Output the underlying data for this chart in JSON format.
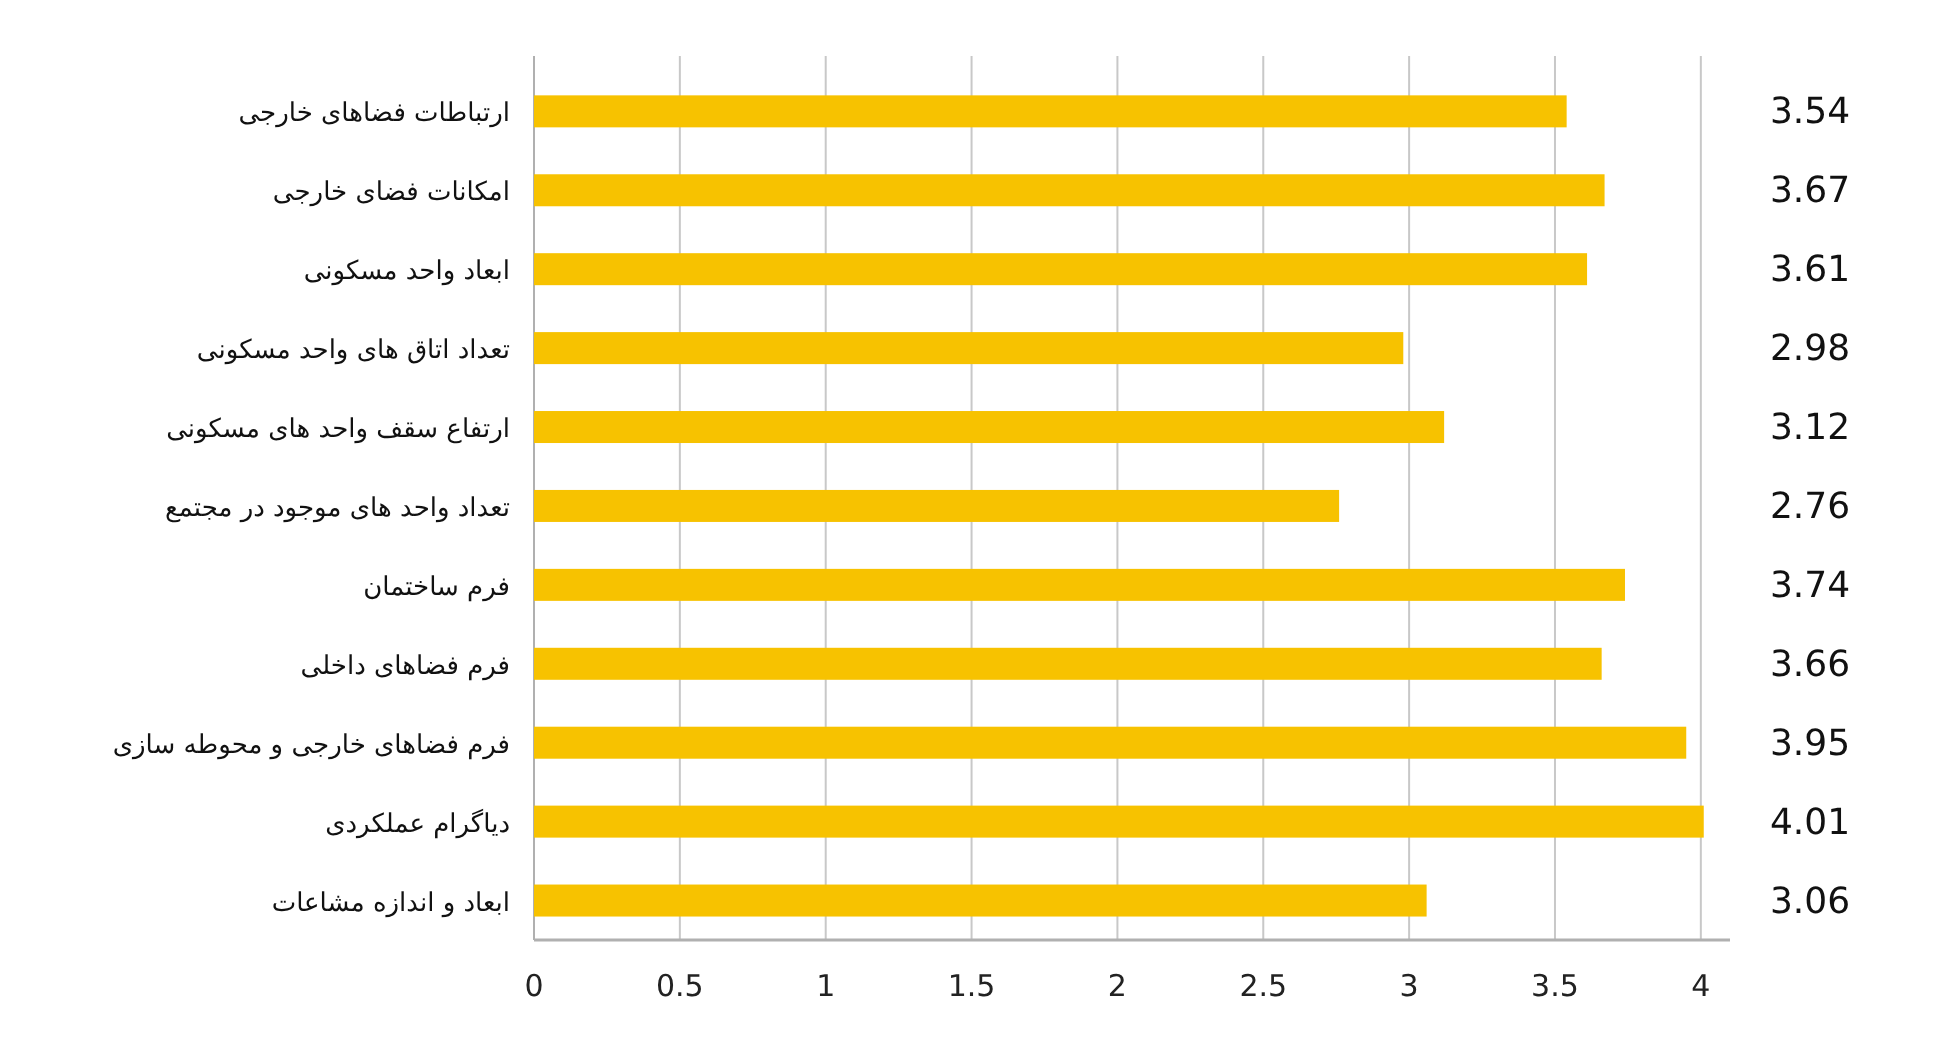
{
  "chart_data": {
    "type": "bar",
    "orientation": "horizontal",
    "categories": [
      "ارتباطات فضاهای خارجی",
      "امکانات فضای خارجی",
      "ابعاد واحد مسکونی",
      "تعداد اتاق های واحد مسکونی",
      "ارتفاع سقف واحد های مسکونی",
      "تعداد واحد های موجود در مجتمع",
      "فرم ساختمان",
      "فرم فضاهای داخلی",
      "فرم فضاهای خارجی و محوطه سازی",
      "دیاگرام عملکردی",
      "ابعاد و اندازه مشاعات"
    ],
    "values": [
      3.54,
      3.67,
      3.61,
      2.98,
      3.12,
      2.76,
      3.74,
      3.66,
      3.95,
      4.01,
      3.06
    ],
    "value_labels": [
      "3.54",
      "3.67",
      "3.61",
      "2.98",
      "3.12",
      "2.76",
      "3.74",
      "3.66",
      "3.95",
      "4.01",
      "3.06"
    ],
    "color": "#f7c200",
    "xlim": [
      0,
      4.1
    ],
    "xticks": [
      0,
      0.5,
      1,
      1.5,
      2,
      2.5,
      3,
      3.5,
      4
    ],
    "grid": "x"
  }
}
